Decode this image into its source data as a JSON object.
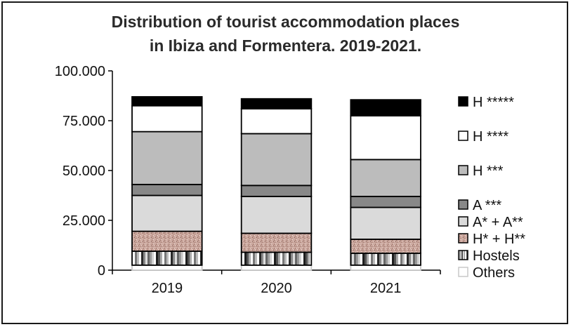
{
  "chart_data": {
    "type": "bar",
    "stacked": true,
    "title": "Distribution of tourist accommodation places\nin Ibiza and Formentera. 2019-2021.",
    "xlabel": "",
    "ylabel": "",
    "categories": [
      "2019",
      "2020",
      "2021"
    ],
    "ylim": [
      0,
      100000
    ],
    "yticks": [
      {
        "value": 0,
        "label": "0"
      },
      {
        "value": 25000,
        "label": "25.000"
      },
      {
        "value": 50000,
        "label": "50.000"
      },
      {
        "value": 75000,
        "label": "75.000"
      },
      {
        "value": 100000,
        "label": "100.000"
      }
    ],
    "grid": false,
    "legend_position": "right",
    "series": [
      {
        "name": "Others",
        "fill": "others",
        "values": [
          2500,
          2500,
          2500
        ]
      },
      {
        "name": "Hostels",
        "fill": "hostels",
        "values": [
          7000,
          6500,
          6000
        ]
      },
      {
        "name": "H* + H**",
        "fill": "speckle",
        "values": [
          10000,
          9500,
          7000
        ]
      },
      {
        "name": "A* + A**",
        "fill": "#dadada",
        "values": [
          18000,
          18500,
          16000
        ]
      },
      {
        "name": "A ***",
        "fill": "#888888",
        "values": [
          5500,
          5500,
          5500
        ]
      },
      {
        "name": "H ***",
        "fill": "#bcbcbc",
        "values": [
          26500,
          26000,
          18500
        ]
      },
      {
        "name": "H ****",
        "fill": "#ffffff",
        "values": [
          13000,
          12500,
          22000
        ]
      },
      {
        "name": "H *****",
        "fill": "#000000",
        "values": [
          4500,
          5000,
          8000
        ]
      }
    ]
  }
}
